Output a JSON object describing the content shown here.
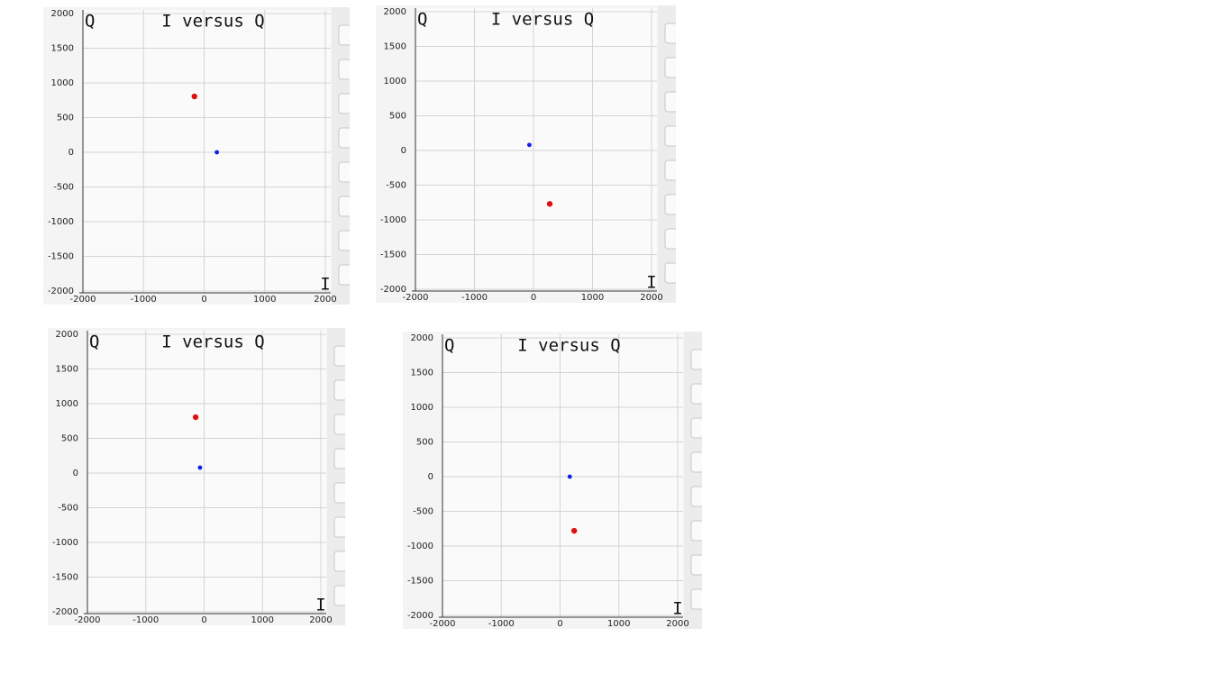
{
  "chart_data": [
    {
      "type": "scatter",
      "title": "I versus Q",
      "x_label": "I",
      "y_label": "Q",
      "xlim": [
        -2000,
        2000
      ],
      "ylim": [
        -2000,
        2000
      ],
      "xticks": [
        -2000,
        -1000,
        0,
        1000,
        2000
      ],
      "yticks": [
        -2000,
        -1500,
        -1000,
        -500,
        0,
        500,
        1000,
        1500,
        2000
      ],
      "grid": true,
      "series": [
        {
          "color": "#e01010",
          "x": [
            -160
          ],
          "values": [
            805
          ]
        },
        {
          "color": "#1020e0",
          "x": [
            210
          ],
          "values": [
            0
          ]
        }
      ]
    },
    {
      "type": "scatter",
      "title": "I versus Q",
      "x_label": "I",
      "y_label": "Q",
      "xlim": [
        -2000,
        2000
      ],
      "ylim": [
        -2000,
        2000
      ],
      "xticks": [
        -2000,
        -1000,
        0,
        1000,
        2000
      ],
      "yticks": [
        -2000,
        -1500,
        -1000,
        -500,
        0,
        500,
        1000,
        1500,
        2000
      ],
      "grid": true,
      "series": [
        {
          "color": "#e01010",
          "x": [
            275
          ],
          "values": [
            -770
          ]
        },
        {
          "color": "#1020e0",
          "x": [
            -70
          ],
          "values": [
            80
          ]
        }
      ]
    },
    {
      "type": "scatter",
      "title": "I versus Q",
      "x_label": "I",
      "y_label": "Q",
      "xlim": [
        -2000,
        2000
      ],
      "ylim": [
        -2000,
        2000
      ],
      "xticks": [
        -2000,
        -1000,
        0,
        1000,
        2000
      ],
      "yticks": [
        -2000,
        -1500,
        -1000,
        -500,
        0,
        500,
        1000,
        1500,
        2000
      ],
      "grid": true,
      "series": [
        {
          "color": "#e01010",
          "x": [
            -145
          ],
          "values": [
            805
          ]
        },
        {
          "color": "#1020e0",
          "x": [
            -70
          ],
          "values": [
            78
          ]
        }
      ]
    },
    {
      "type": "scatter",
      "title": "I versus Q",
      "x_label": "I",
      "y_label": "Q",
      "xlim": [
        -2000,
        2000
      ],
      "ylim": [
        -2000,
        2000
      ],
      "xticks": [
        -2000,
        -1000,
        0,
        1000,
        2000
      ],
      "yticks": [
        -2000,
        -1500,
        -1000,
        -500,
        0,
        500,
        1000,
        1500,
        2000
      ],
      "grid": true,
      "series": [
        {
          "color": "#e01010",
          "x": [
            240
          ],
          "values": [
            -780
          ]
        },
        {
          "color": "#1020e0",
          "x": [
            165
          ],
          "values": [
            0
          ]
        }
      ]
    }
  ]
}
